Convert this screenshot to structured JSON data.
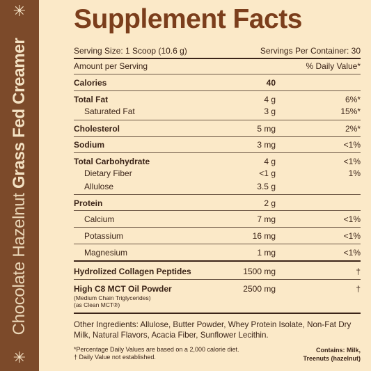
{
  "sidebar": {
    "product_thin": "Chocolate Hazelnut ",
    "product_bold": "Grass Fed Creamer",
    "star_icon": "✳"
  },
  "title": "Supplement Facts",
  "serving_size": "Serving Size: 1 Scoop (10.6 g)",
  "servings_per_container": "Servings Per Container: 30",
  "header": {
    "amount": "Amount per Serving",
    "dv": "% Daily Value*"
  },
  "rows": [
    {
      "name": "Calories",
      "amount": "40",
      "dv": ""
    },
    {
      "name": "Total Fat",
      "amount": "4 g",
      "dv": "6%*"
    },
    {
      "name": "Saturated Fat",
      "amount": "3 g",
      "dv": "15%*"
    },
    {
      "name": "Cholesterol",
      "amount": "5 mg",
      "dv": "2%*"
    },
    {
      "name": "Sodium",
      "amount": "3 mg",
      "dv": "<1%"
    },
    {
      "name": "Total Carbohydrate",
      "amount": "4 g",
      "dv": "<1%"
    },
    {
      "name": "Dietary Fiber",
      "amount": "<1 g",
      "dv": "1%"
    },
    {
      "name": "Allulose",
      "amount": "3.5 g",
      "dv": ""
    },
    {
      "name": "Protein",
      "amount": "2 g",
      "dv": ""
    },
    {
      "name": "Calcium",
      "amount": "7 mg",
      "dv": "<1%"
    },
    {
      "name": "Potassium",
      "amount": "16 mg",
      "dv": "<1%"
    },
    {
      "name": "Magnesium",
      "amount": "1 mg",
      "dv": "<1%"
    },
    {
      "name": "Hydrolized Collagen Peptides",
      "amount": "1500 mg",
      "dv": "†"
    },
    {
      "name": "High C8 MCT Oil Powder",
      "amount": "2500 mg",
      "dv": "†"
    }
  ],
  "mct_note_1": "(Medium Chain Triglycerides)",
  "mct_note_2": "(as Clean MCT®)",
  "ingredients": "Other Ingredients: Allulose, Butter Powder, Whey Protein Isolate, Non-Fat Dry Milk, Natural Flavors, Acacia Fiber, Sunflower Lecithin.",
  "footnote_1": "*Percentage Daily Values are based on a 2,000 calorie diet.",
  "footnote_2": "† Daily Value not established.",
  "contains_1": "Contains: Milk,",
  "contains_2": "Treenuts (hazelnut)"
}
